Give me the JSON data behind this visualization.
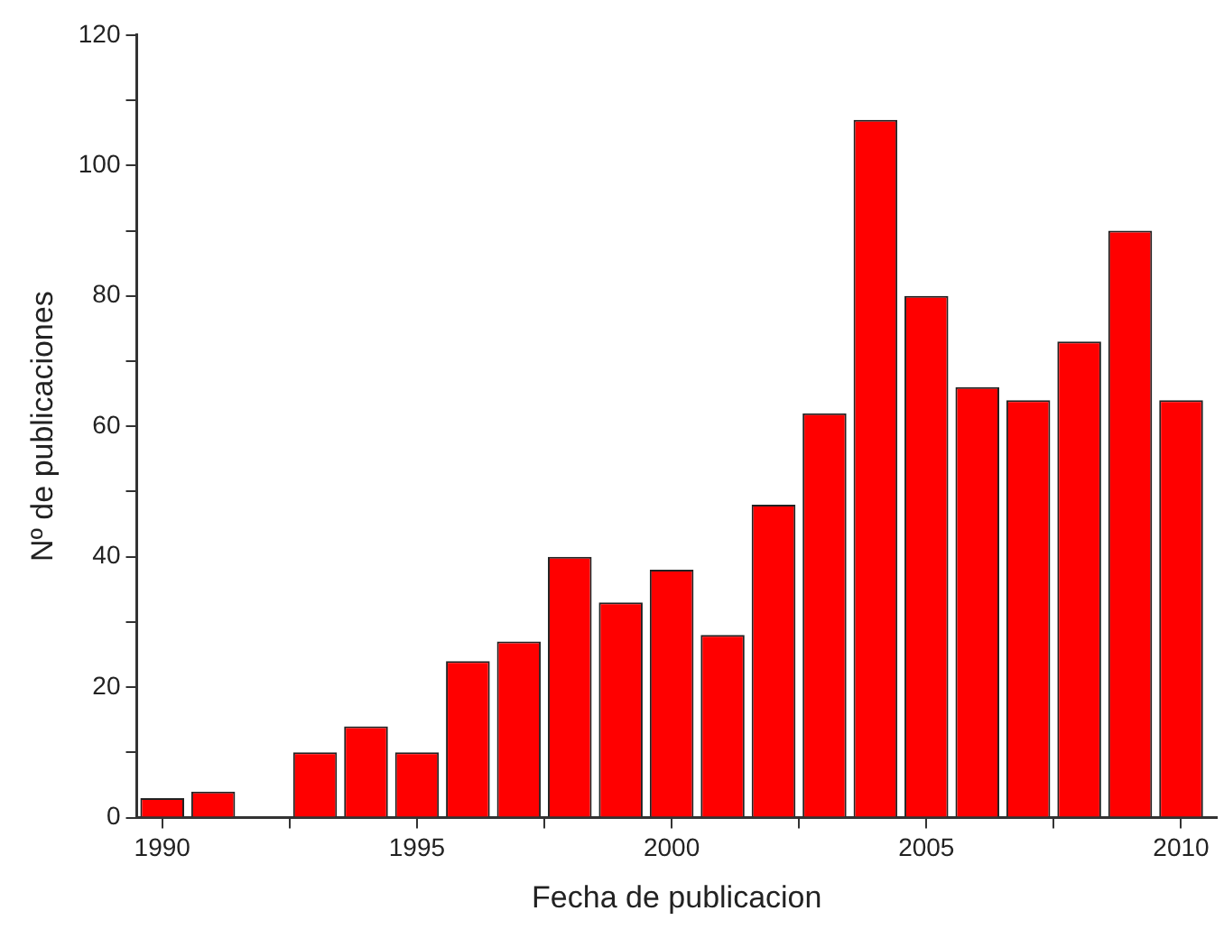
{
  "chart_data": {
    "type": "bar",
    "xlabel": "Fecha de publicacion",
    "ylabel": "Nº de publicaciones",
    "x": [
      1990,
      1991,
      1992,
      1993,
      1994,
      1995,
      1996,
      1997,
      1998,
      1999,
      2000,
      2001,
      2002,
      2003,
      2004,
      2005,
      2006,
      2007,
      2008,
      2009,
      2010
    ],
    "values": [
      3,
      4,
      null,
      10,
      14,
      10,
      24,
      27,
      40,
      33,
      38,
      28,
      48,
      62,
      107,
      80,
      66,
      64,
      73,
      90,
      64
    ],
    "color": "#ff0000",
    "xlim": [
      1989.5,
      2010.7
    ],
    "xticks": [
      1990,
      {
        "value": 1992.5,
        "label": null
      },
      1995,
      {
        "value": 1997.5,
        "label": null
      },
      2000,
      {
        "value": 2002.5,
        "label": null
      },
      2005,
      {
        "value": 2007.5,
        "label": null
      },
      2010
    ],
    "ylim": [
      0,
      120
    ],
    "yticks": [
      0,
      {
        "value": 10,
        "label": null
      },
      20,
      {
        "value": 30,
        "label": null
      },
      40,
      {
        "value": 50,
        "label": null
      },
      60,
      {
        "value": 70,
        "label": null
      },
      80,
      {
        "value": 90,
        "label": null
      },
      100,
      {
        "value": 110,
        "label": null
      },
      120
    ],
    "grid": false,
    "legend": false
  }
}
